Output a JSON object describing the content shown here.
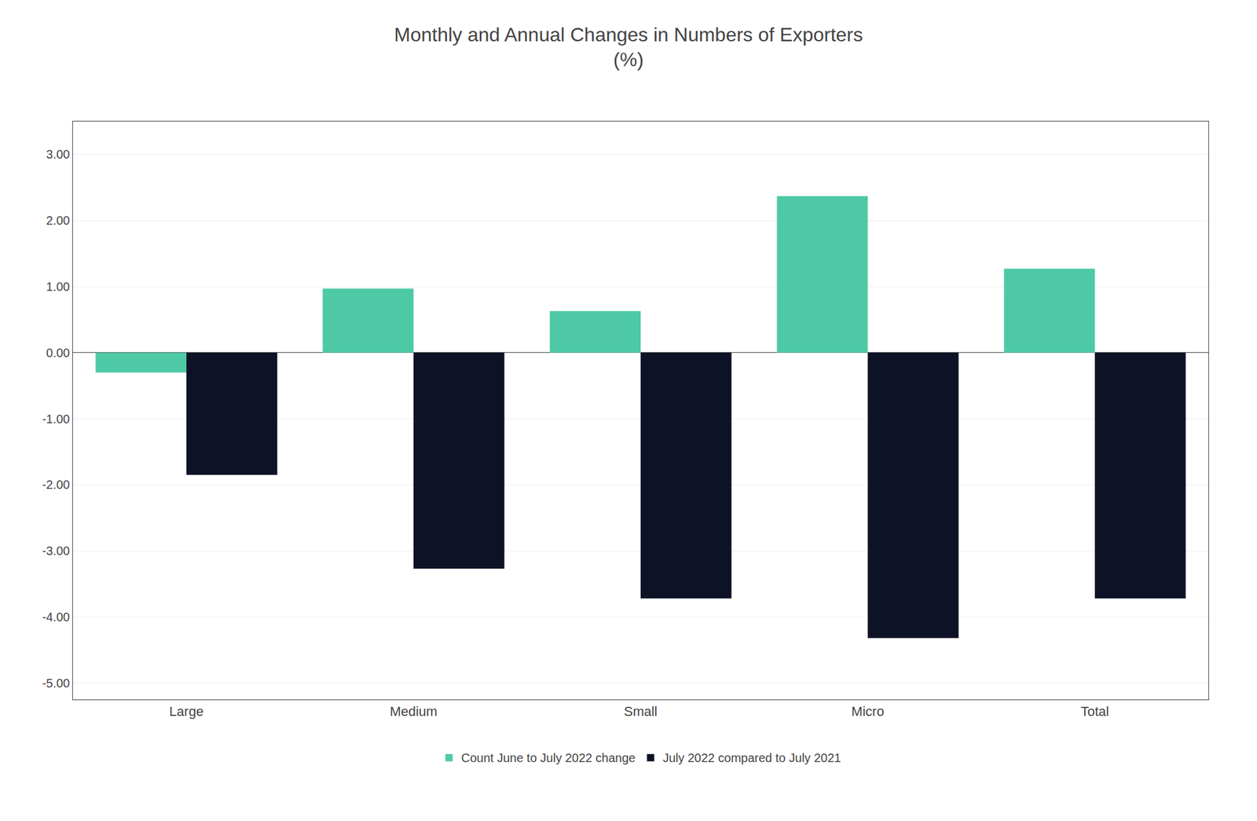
{
  "chart_data": {
    "type": "bar",
    "title": "Monthly and Annual Changes in Numbers of Exporters",
    "subtitle": "(%)",
    "categories": [
      "Large",
      "Medium",
      "Small",
      "Micro",
      "Total"
    ],
    "series": [
      {
        "name": "Count June to July 2022 change",
        "color": "#4EC9A6",
        "values": [
          -0.3,
          0.97,
          0.63,
          2.37,
          1.27
        ]
      },
      {
        "name": "July 2022 compared to July 2021",
        "color": "#0D1226",
        "values": [
          -1.85,
          -3.27,
          -3.72,
          -4.32,
          -3.72
        ]
      }
    ],
    "ylim": [
      -5.25,
      3.5
    ],
    "yticks": [
      {
        "value": -5.0,
        "label": "-5.00"
      },
      {
        "value": -4.0,
        "label": "-4.00"
      },
      {
        "value": -3.0,
        "label": "-3.00"
      },
      {
        "value": -2.0,
        "label": "-2.00"
      },
      {
        "value": -1.0,
        "label": "-1.00"
      },
      {
        "value": 0.0,
        "label": "0.00"
      },
      {
        "value": 1.0,
        "label": "1.00"
      },
      {
        "value": 2.0,
        "label": "2.00"
      },
      {
        "value": 3.0,
        "label": "3.00"
      }
    ],
    "grid": true,
    "legend": "bottom"
  }
}
